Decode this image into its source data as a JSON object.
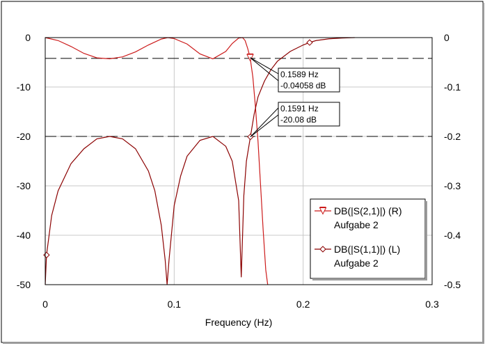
{
  "chart_data": {
    "type": "line",
    "xlabel": "Frequency (Hz)",
    "x_ticks": [
      "0",
      "0.1",
      "0.2",
      "0.3"
    ],
    "xlim": [
      0,
      0.3
    ],
    "left_axis": {
      "ticks": [
        "0",
        "-10",
        "-20",
        "-30",
        "-40",
        "-50"
      ],
      "ylim": [
        -50,
        0
      ]
    },
    "right_axis": {
      "ticks": [
        "0",
        "-0.1",
        "-0.2",
        "-0.3",
        "-0.4",
        "-0.5"
      ],
      "ylim": [
        -0.5,
        0
      ]
    },
    "grid": true,
    "hlines": [
      {
        "axis": "left",
        "value": -4.2
      },
      {
        "axis": "left",
        "value": -20
      }
    ],
    "series": [
      {
        "name": "DB(|S(2,1)|) (R)",
        "subtitle": "Aufgabe 2",
        "axis": "right",
        "marker": "triangle-down",
        "color": "#cc1a1a",
        "points": [
          [
            0.0,
            0.0
          ],
          [
            0.01,
            -0.006
          ],
          [
            0.02,
            -0.018
          ],
          [
            0.03,
            -0.032
          ],
          [
            0.04,
            -0.041
          ],
          [
            0.05,
            -0.043
          ],
          [
            0.06,
            -0.039
          ],
          [
            0.07,
            -0.029
          ],
          [
            0.08,
            -0.015
          ],
          [
            0.09,
            -0.003
          ],
          [
            0.095,
            0.0
          ],
          [
            0.1,
            -0.002
          ],
          [
            0.11,
            -0.013
          ],
          [
            0.12,
            -0.033
          ],
          [
            0.13,
            -0.043
          ],
          [
            0.14,
            -0.028
          ],
          [
            0.145,
            -0.012
          ],
          [
            0.15,
            -0.001
          ],
          [
            0.153,
            0.0
          ],
          [
            0.155,
            -0.006
          ],
          [
            0.157,
            -0.022
          ],
          [
            0.1589,
            -0.04058
          ],
          [
            0.161,
            -0.08
          ],
          [
            0.163,
            -0.14
          ],
          [
            0.165,
            -0.21
          ],
          [
            0.167,
            -0.3
          ],
          [
            0.169,
            -0.39
          ],
          [
            0.171,
            -0.47
          ],
          [
            0.1725,
            -0.5
          ]
        ],
        "markers_at": [
          [
            0.1589,
            -0.04058
          ]
        ]
      },
      {
        "name": "DB(|S(1,1)|) (L)",
        "subtitle": "Aufgabe 2",
        "axis": "left",
        "marker": "diamond",
        "color": "#8b0000",
        "points": [
          [
            0.0,
            -50
          ],
          [
            0.001,
            -44
          ],
          [
            0.005,
            -36
          ],
          [
            0.01,
            -31
          ],
          [
            0.02,
            -25.5
          ],
          [
            0.03,
            -22.5
          ],
          [
            0.04,
            -20.5
          ],
          [
            0.05,
            -20
          ],
          [
            0.06,
            -20.5
          ],
          [
            0.07,
            -22.5
          ],
          [
            0.08,
            -27
          ],
          [
            0.085,
            -31
          ],
          [
            0.09,
            -38
          ],
          [
            0.093,
            -45
          ],
          [
            0.0945,
            -50
          ],
          [
            0.096,
            -45
          ],
          [
            0.1,
            -34
          ],
          [
            0.105,
            -28
          ],
          [
            0.11,
            -24
          ],
          [
            0.12,
            -20.8
          ],
          [
            0.13,
            -20
          ],
          [
            0.14,
            -22
          ],
          [
            0.145,
            -25
          ],
          [
            0.15,
            -33
          ],
          [
            0.152,
            -48.5
          ],
          [
            0.154,
            -32
          ],
          [
            0.156,
            -25
          ],
          [
            0.1591,
            -20.08
          ],
          [
            0.162,
            -15.5
          ],
          [
            0.165,
            -12
          ],
          [
            0.17,
            -8.8
          ],
          [
            0.175,
            -6.5
          ],
          [
            0.18,
            -4.8
          ],
          [
            0.19,
            -2.8
          ],
          [
            0.2,
            -1.5
          ],
          [
            0.205,
            -1.0
          ],
          [
            0.21,
            -0.6
          ],
          [
            0.22,
            -0.25
          ],
          [
            0.23,
            -0.1
          ],
          [
            0.24,
            0.0
          ]
        ],
        "markers_at": [
          [
            0.001,
            -44
          ],
          [
            0.1591,
            -20.08
          ],
          [
            0.205,
            -1.0
          ]
        ]
      }
    ],
    "annotations": [
      {
        "lines": [
          "0.1589 Hz",
          "-0.04058 dB"
        ],
        "x": 0.1589,
        "y": -4.058
      },
      {
        "lines": [
          "0.1591 Hz",
          "-20.08 dB"
        ],
        "x": 0.1591,
        "y": -20.08
      }
    ],
    "legend_position": "bottom-right"
  }
}
